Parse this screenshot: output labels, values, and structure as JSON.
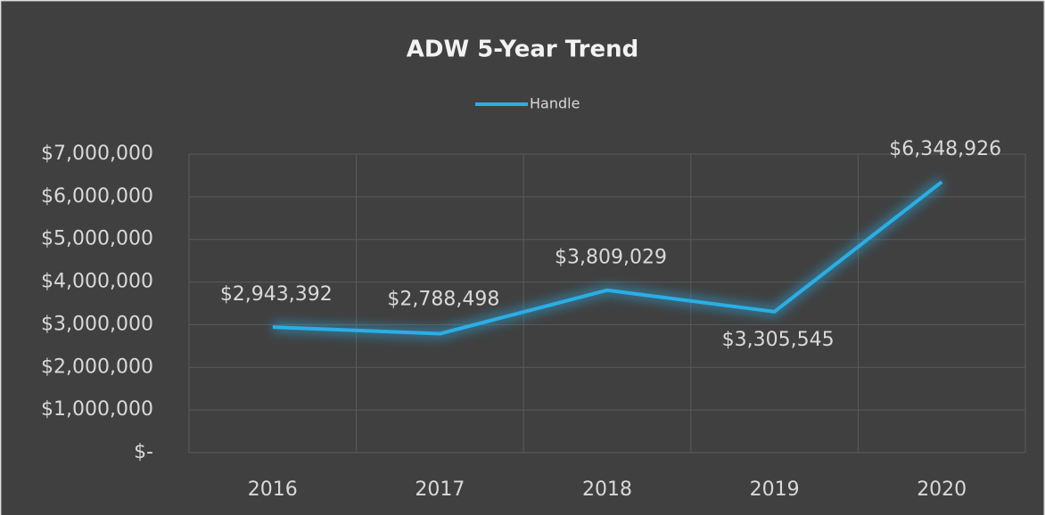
{
  "chart_data": {
    "type": "line",
    "title": "ADW 5-Year Trend",
    "categories": [
      "2016",
      "2017",
      "2018",
      "2019",
      "2020"
    ],
    "series": [
      {
        "name": "Handle",
        "color": "#2aaee6",
        "values": [
          2943392,
          2788498,
          3809029,
          3305545,
          6348926
        ],
        "value_labels": [
          "$2,943,392",
          "$2,788,498",
          "$3,809,029",
          "$3,305,545",
          "$6,348,926"
        ]
      }
    ],
    "ylim": [
      0,
      7000000
    ],
    "yticks": [
      {
        "value": 0,
        "label": "$-"
      },
      {
        "value": 1000000,
        "label": "$1,000,000"
      },
      {
        "value": 2000000,
        "label": "$2,000,000"
      },
      {
        "value": 3000000,
        "label": "$3,000,000"
      },
      {
        "value": 4000000,
        "label": "$4,000,000"
      },
      {
        "value": 5000000,
        "label": "$5,000,000"
      },
      {
        "value": 6000000,
        "label": "$6,000,000"
      },
      {
        "value": 7000000,
        "label": "$7,000,000"
      }
    ],
    "grid": true,
    "legend": "top"
  }
}
